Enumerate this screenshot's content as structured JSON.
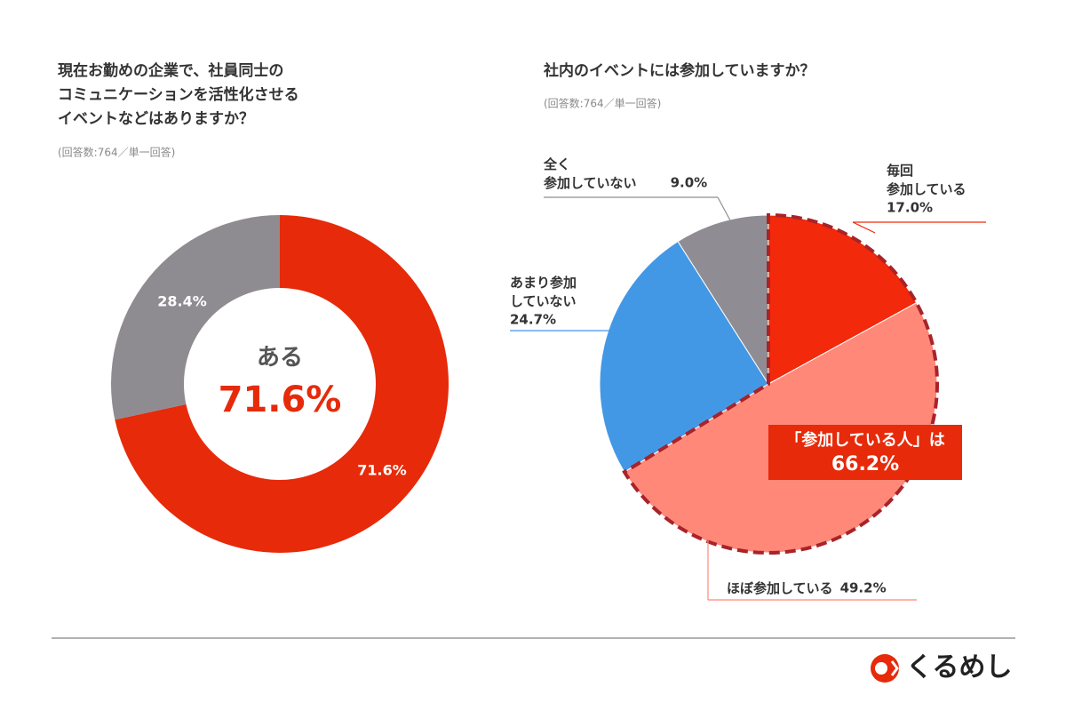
{
  "chart_data": [
    {
      "type": "donut",
      "title": "現在お勤めの企業で、社員同士の\nコミュニケーションを活性化させる\nイベントなどはありますか？",
      "subtitle": "(回答数:764／単一回答)",
      "categories": [
        "ある",
        null
      ],
      "values": [
        71.6,
        28.4
      ],
      "value_labels": [
        "71.6%",
        "28.4%"
      ],
      "colors": [
        "#e62a0a",
        "#8e8c91"
      ]
    },
    {
      "type": "pie",
      "title": "社内のイベントには参加していますか？",
      "subtitle": "(回答数:764／単一回答)",
      "categories": [
        "毎回\n参加している",
        "ほぼ参加している",
        "あまり参加\nしていない",
        "全く\n参加していない"
      ],
      "values": [
        17.0,
        49.2,
        24.7,
        9.0
      ],
      "value_labels": [
        "17.0%",
        "49.2%",
        "24.7%",
        "9.0%"
      ],
      "colors": [
        "#f2290b",
        "#ff8878",
        "#4398e6",
        "#8f8d93"
      ],
      "annotation": {
        "text": "「参加している人」は",
        "value": 66.2,
        "value_label": "66.2%"
      }
    }
  ],
  "brand": "くるめし"
}
